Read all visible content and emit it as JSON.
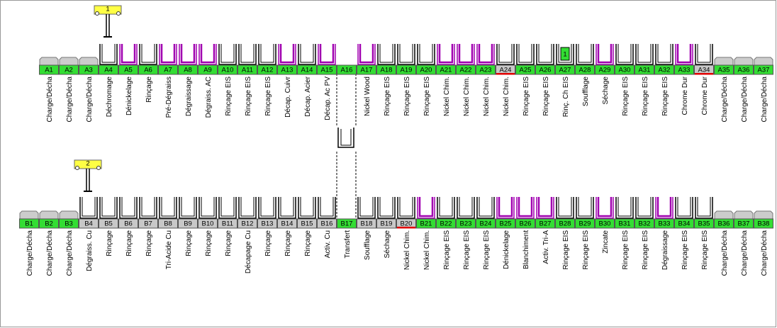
{
  "hoists": [
    {
      "label": "1"
    },
    {
      "label": "2"
    }
  ],
  "lines": [
    {
      "stations": [
        {
          "id": "A1",
          "label": "Charge/Décha",
          "kind": "load",
          "state": "on"
        },
        {
          "id": "A2",
          "label": "Charge/Décha",
          "kind": "load",
          "state": "on"
        },
        {
          "id": "A3",
          "label": "Charge/Décha",
          "kind": "load",
          "state": "on"
        },
        {
          "id": "A4",
          "label": "Déchromage",
          "kind": "tank",
          "state": "on"
        },
        {
          "id": "A5",
          "label": "Dénickelage",
          "kind": "tank-purple",
          "state": "on"
        },
        {
          "id": "A6",
          "label": "Rinçage",
          "kind": "tank",
          "state": "on"
        },
        {
          "id": "A7",
          "label": "Pré-Dégraiss",
          "kind": "tank-purple",
          "state": "on"
        },
        {
          "id": "A8",
          "label": "Dégraissage",
          "kind": "tank-purple",
          "state": "on"
        },
        {
          "id": "A9",
          "label": "Dégraiss. AC",
          "kind": "tank-purple",
          "state": "on"
        },
        {
          "id": "A10",
          "label": "Rinçage EIS",
          "kind": "tank",
          "state": "on"
        },
        {
          "id": "A11",
          "label": "Rinçage EIS",
          "kind": "tank",
          "state": "on"
        },
        {
          "id": "A12",
          "label": "Rinçage EIS",
          "kind": "tank",
          "state": "on"
        },
        {
          "id": "A13",
          "label": "Décap. Cuivr",
          "kind": "tank-purple",
          "state": "on"
        },
        {
          "id": "A14",
          "label": "Décap. Acier",
          "kind": "tank",
          "state": "on"
        },
        {
          "id": "A15",
          "label": "Décap. Ac PV",
          "kind": "tank-purple",
          "state": "on"
        },
        {
          "id": "A16",
          "kind": "transfer",
          "state": "on"
        },
        {
          "id": "A17",
          "label": "Nickel Wood",
          "kind": "tank-purple",
          "state": "on"
        },
        {
          "id": "A18",
          "label": "Rinçage EIS",
          "kind": "tank",
          "state": "on"
        },
        {
          "id": "A19",
          "label": "Rinçage EIS",
          "kind": "tank",
          "state": "on"
        },
        {
          "id": "A20",
          "label": "Rinçage EIS",
          "kind": "tank",
          "state": "on"
        },
        {
          "id": "A21",
          "label": "Nickel Chim.",
          "kind": "tank-purple",
          "state": "on"
        },
        {
          "id": "A22",
          "label": "Nickel Chim.",
          "kind": "tank-purple",
          "state": "on"
        },
        {
          "id": "A23",
          "label": "Nickel Chim.",
          "kind": "tank-purple",
          "state": "on"
        },
        {
          "id": "A24",
          "label": "Nickel Chim.",
          "kind": "tank",
          "state": "off",
          "alarm": true
        },
        {
          "id": "A25",
          "label": "Rinçage EIS",
          "kind": "tank",
          "state": "on"
        },
        {
          "id": "A26",
          "label": "Rinçage EIS",
          "kind": "tank",
          "state": "on"
        },
        {
          "id": "A27",
          "label": "Rinç. Ch EIS",
          "kind": "tank",
          "state": "on",
          "carrier": "1"
        },
        {
          "id": "A28",
          "label": "Soufflage",
          "kind": "tank",
          "state": "on"
        },
        {
          "id": "A29",
          "label": "Séchage",
          "kind": "tank-purple",
          "state": "on"
        },
        {
          "id": "A30",
          "label": "Rinçage EIS",
          "kind": "tank",
          "state": "on"
        },
        {
          "id": "A31",
          "label": "Rinçage EIS",
          "kind": "tank",
          "state": "on"
        },
        {
          "id": "A32",
          "label": "Rinçage EIS",
          "kind": "tank",
          "state": "on"
        },
        {
          "id": "A33",
          "label": "Chrome Dur",
          "kind": "tank-purple",
          "state": "on"
        },
        {
          "id": "A34",
          "label": "Chrome Dur",
          "kind": "tank",
          "state": "off",
          "alarm": true
        },
        {
          "id": "A35",
          "label": "Charge/Décha",
          "kind": "load",
          "state": "on"
        },
        {
          "id": "A36",
          "label": "Charge/Décha",
          "kind": "load",
          "state": "on"
        },
        {
          "id": "A37",
          "label": "Charge/Décha",
          "kind": "load",
          "state": "on"
        }
      ]
    },
    {
      "stations": [
        {
          "id": "B1",
          "label": "Charge/Décha",
          "kind": "load",
          "state": "on"
        },
        {
          "id": "B2",
          "label": "Charge/Décha",
          "kind": "load",
          "state": "on"
        },
        {
          "id": "B3",
          "label": "Charge/Décha",
          "kind": "load",
          "state": "on"
        },
        {
          "id": "B4",
          "label": "Dégraiss. Cu",
          "kind": "tank",
          "state": "off"
        },
        {
          "id": "B5",
          "label": "Rinçage",
          "kind": "tank",
          "state": "off"
        },
        {
          "id": "B6",
          "label": "Rinçage",
          "kind": "tank",
          "state": "off"
        },
        {
          "id": "B7",
          "label": "Rinçage",
          "kind": "tank",
          "state": "off"
        },
        {
          "id": "B8",
          "label": "Tri-Acide Cu",
          "kind": "tank",
          "state": "off"
        },
        {
          "id": "B9",
          "label": "Rinçage",
          "kind": "tank",
          "state": "off"
        },
        {
          "id": "B10",
          "label": "Rinçage",
          "kind": "tank",
          "state": "off"
        },
        {
          "id": "B11",
          "label": "Rinçage",
          "kind": "tank",
          "state": "off"
        },
        {
          "id": "B12",
          "label": "Décapage Cu",
          "kind": "tank",
          "state": "off"
        },
        {
          "id": "B13",
          "label": "Rinçage",
          "kind": "tank",
          "state": "off"
        },
        {
          "id": "B14",
          "label": "Rinçage",
          "kind": "tank",
          "state": "off"
        },
        {
          "id": "B15",
          "label": "Rinçage",
          "kind": "tank",
          "state": "off"
        },
        {
          "id": "B16",
          "label": "Activ. Cu",
          "kind": "tank",
          "state": "off"
        },
        {
          "id": "B17",
          "label": "Transfert",
          "kind": "transfer",
          "state": "on"
        },
        {
          "id": "B18",
          "label": "Soufflage",
          "kind": "tank",
          "state": "off"
        },
        {
          "id": "B19",
          "label": "Séchage",
          "kind": "tank",
          "state": "off"
        },
        {
          "id": "B20",
          "label": "Nickel Chim.",
          "kind": "tank",
          "state": "off",
          "alarm": true
        },
        {
          "id": "B21",
          "label": "Nickel Chim.",
          "kind": "tank-purple",
          "state": "on"
        },
        {
          "id": "B22",
          "label": "Rinçage EIS",
          "kind": "tank",
          "state": "on"
        },
        {
          "id": "B23",
          "label": "Rinçage EIS",
          "kind": "tank",
          "state": "on"
        },
        {
          "id": "B24",
          "label": "Rinçage EIS",
          "kind": "tank",
          "state": "on"
        },
        {
          "id": "B25",
          "label": "Dénickelage",
          "kind": "tank-purple",
          "state": "on"
        },
        {
          "id": "B26",
          "label": "Blanchiment",
          "kind": "tank-purple",
          "state": "on"
        },
        {
          "id": "B27",
          "label": "Activ. Tri-A",
          "kind": "tank-purple",
          "state": "on"
        },
        {
          "id": "B28",
          "label": "Rinçage EIS",
          "kind": "tank",
          "state": "on"
        },
        {
          "id": "B29",
          "label": "Rinçage EIS",
          "kind": "tank",
          "state": "on"
        },
        {
          "id": "B30",
          "label": "Zincate",
          "kind": "tank-purple",
          "state": "on"
        },
        {
          "id": "B31",
          "label": "Rinçage EIS",
          "kind": "tank",
          "state": "on"
        },
        {
          "id": "B32",
          "label": "Rinçage EIS",
          "kind": "tank",
          "state": "on"
        },
        {
          "id": "B33",
          "label": "Dégraissage",
          "kind": "tank-purple",
          "state": "on"
        },
        {
          "id": "B34",
          "label": "Rinçage EIS",
          "kind": "tank",
          "state": "on"
        },
        {
          "id": "B35",
          "label": "Rinçage EIS",
          "kind": "tank",
          "state": "on"
        },
        {
          "id": "B36",
          "label": "Charge/Décha",
          "kind": "load",
          "state": "on"
        },
        {
          "id": "B37",
          "label": "Charge/Décha",
          "kind": "load",
          "state": "on"
        },
        {
          "id": "B38",
          "label": "Charge/Décha",
          "kind": "load",
          "state": "on"
        }
      ]
    }
  ]
}
